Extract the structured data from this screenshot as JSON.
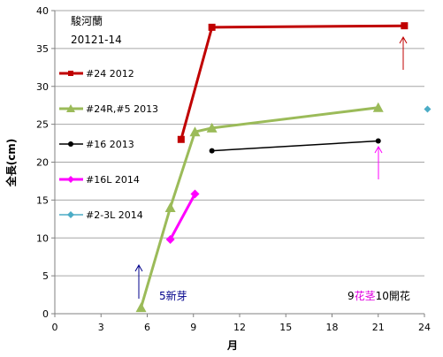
{
  "chart_data": {
    "type": "line",
    "title": "駿河蘭",
    "subtitle": "20121-14",
    "xlabel": "月",
    "ylabel": "全長(cm)",
    "xlim": [
      0,
      24
    ],
    "ylim": [
      0,
      40
    ],
    "xticks": [
      0,
      3,
      6,
      9,
      12,
      15,
      18,
      21,
      24
    ],
    "yticks": [
      0,
      5,
      10,
      15,
      20,
      25,
      30,
      35,
      40
    ],
    "grid": "horizontal",
    "legend_position": "left",
    "series": [
      {
        "name": "#24 2012",
        "color": "#c00000",
        "marker": "square",
        "width": 3,
        "points": [
          [
            8.2,
            23
          ],
          [
            10.2,
            37.8
          ],
          [
            22.7,
            38
          ]
        ]
      },
      {
        "name": "#24R,#5 2013",
        "color": "#9bbb59",
        "marker": "triangle",
        "width": 3,
        "points": [
          [
            5.6,
            0.8
          ],
          [
            7.5,
            14
          ],
          [
            9.1,
            24
          ],
          [
            10.2,
            24.5
          ],
          [
            21,
            27.2
          ]
        ]
      },
      {
        "name": "#16 2013",
        "color": "#000000",
        "marker": "circle",
        "width": 1.5,
        "points": [
          [
            10.2,
            21.5
          ],
          [
            21,
            22.8
          ]
        ]
      },
      {
        "name": "#16L 2014",
        "color": "#ff00ff",
        "marker": "diamond",
        "width": 3,
        "points": [
          [
            7.5,
            9.8
          ],
          [
            9.1,
            15.8
          ]
        ]
      },
      {
        "name": "#2-3L 2014",
        "color": "#4bacc6",
        "marker": "diamond",
        "width": 1.5,
        "points": [
          [
            24.2,
            27
          ]
        ]
      }
    ],
    "annotations": [
      {
        "id": "ann-bud",
        "parts": [
          {
            "text": "5新芽",
            "color": "#00008b"
          }
        ]
      },
      {
        "id": "ann-flower",
        "parts": [
          {
            "text": "9",
            "color": "#000000"
          },
          {
            "text": "花茎",
            "color": "#e000e0"
          },
          {
            "text": "10開花",
            "color": "#000000"
          }
        ]
      }
    ]
  }
}
